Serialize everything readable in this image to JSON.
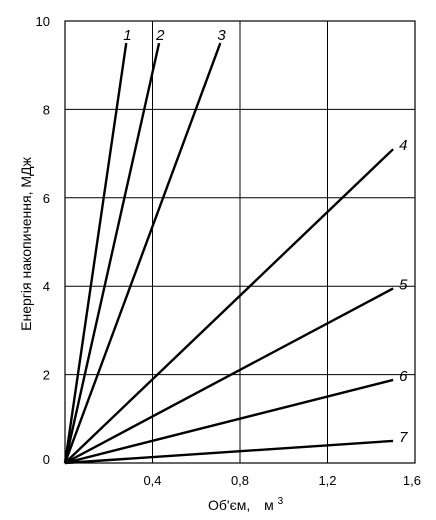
{
  "chart_data": {
    "type": "line",
    "title": "",
    "xlabel": "Об'єм,",
    "xlabel_unit": "м",
    "xlabel_unit_sup": "3",
    "ylabel": "Енергія накопичення,   МДж",
    "xlim": [
      0,
      1.6
    ],
    "ylim": [
      0,
      10
    ],
    "x_ticks": [
      {
        "value": 0.4,
        "label": "0,4"
      },
      {
        "value": 0.8,
        "label": "0,8"
      },
      {
        "value": 1.2,
        "label": "1,2"
      },
      {
        "value": 1.6,
        "label": "1,6"
      }
    ],
    "y_ticks": [
      {
        "value": 0,
        "label": "0"
      },
      {
        "value": 2,
        "label": "2"
      },
      {
        "value": 4,
        "label": "4"
      },
      {
        "value": 6,
        "label": "6"
      },
      {
        "value": 8,
        "label": "8"
      },
      {
        "value": 10,
        "label": "10"
      }
    ],
    "x_grid": [
      0.4,
      0.8,
      1.2
    ],
    "y_grid": [
      2,
      4,
      6,
      8
    ],
    "series": [
      {
        "label": "1",
        "x": [
          0,
          0.28
        ],
        "y": [
          0,
          9.5
        ]
      },
      {
        "label": "2",
        "x": [
          0,
          0.43
        ],
        "y": [
          0,
          9.5
        ]
      },
      {
        "label": "3",
        "x": [
          0,
          0.71
        ],
        "y": [
          0,
          9.5
        ]
      },
      {
        "label": "4",
        "x": [
          0,
          1.5
        ],
        "y": [
          0,
          7.1
        ]
      },
      {
        "label": "5",
        "x": [
          0,
          1.5
        ],
        "y": [
          0,
          3.95
        ]
      },
      {
        "label": "6",
        "x": [
          0,
          1.5
        ],
        "y": [
          0,
          1.88
        ]
      },
      {
        "label": "7",
        "x": [
          0,
          1.5
        ],
        "y": [
          0,
          0.5
        ]
      }
    ]
  }
}
